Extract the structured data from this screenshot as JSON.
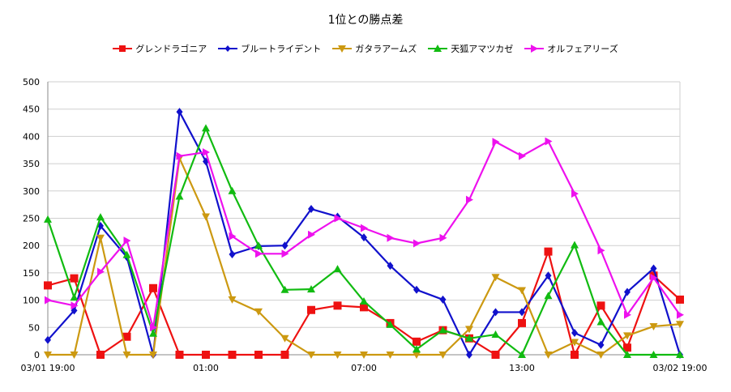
{
  "chart_data": {
    "type": "line",
    "title": "1位との勝点差",
    "xlabel": "",
    "ylabel": "",
    "ylim": [
      0,
      500
    ],
    "yticks": [
      0,
      50,
      100,
      150,
      200,
      250,
      300,
      350,
      400,
      450,
      500
    ],
    "grid": true,
    "legend_position": "top-center",
    "x_count": 25,
    "x_tick_labels": [
      {
        "index": 0,
        "label": "03/01 19:00"
      },
      {
        "index": 6,
        "label": "01:00"
      },
      {
        "index": 12,
        "label": "07:00"
      },
      {
        "index": 18,
        "label": "13:00"
      },
      {
        "index": 24,
        "label": "03/02 19:00"
      }
    ],
    "series": [
      {
        "name": "グレンドラゴニア",
        "color": "#ee1111",
        "marker": "square",
        "values": [
          127,
          140,
          0,
          33,
          122,
          0,
          0,
          0,
          0,
          0,
          82,
          90,
          87,
          58,
          24,
          45,
          30,
          0,
          58,
          189,
          0,
          90,
          13,
          145,
          101
        ]
      },
      {
        "name": "ブルートライデント",
        "color": "#1111cc",
        "marker": "diamond",
        "values": [
          27,
          81,
          236,
          179,
          0,
          445,
          354,
          184,
          199,
          200,
          267,
          253,
          215,
          163,
          119,
          101,
          0,
          78,
          78,
          145,
          40,
          18,
          115,
          158,
          0
        ]
      },
      {
        "name": "ガタラアームズ",
        "color": "#cc9911",
        "marker": "triangle-down",
        "values": [
          0,
          0,
          214,
          0,
          0,
          360,
          253,
          101,
          79,
          30,
          0,
          0,
          0,
          0,
          0,
          0,
          47,
          142,
          118,
          0,
          23,
          0,
          35,
          52,
          56
        ]
      },
      {
        "name": "天狐アマツカゼ",
        "color": "#11bb11",
        "marker": "triangle-up",
        "values": [
          248,
          105,
          252,
          183,
          39,
          290,
          415,
          300,
          200,
          119,
          120,
          157,
          98,
          55,
          10,
          45,
          30,
          37,
          0,
          108,
          201,
          60,
          0,
          0,
          0
        ]
      },
      {
        "name": "オルフェアリーズ",
        "color": "#ee11ee",
        "marker": "triangle-right",
        "values": [
          100,
          90,
          152,
          209,
          50,
          364,
          371,
          217,
          185,
          185,
          220,
          250,
          232,
          214,
          204,
          214,
          284,
          390,
          364,
          391,
          295,
          191,
          73,
          141,
          73
        ]
      }
    ]
  }
}
